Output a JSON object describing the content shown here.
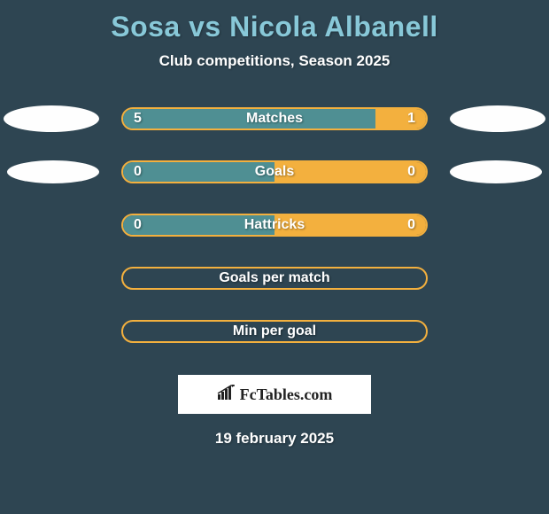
{
  "title": "Sosa vs Nicola Albanell",
  "subtitle": "Club competitions, Season 2025",
  "date": "19 february 2025",
  "logo_text": "FcTables.com",
  "colors": {
    "title": "#88c8d8",
    "text": "#ffffff",
    "background": "#2e4552",
    "left_fill": "#4f8f93",
    "right_fill": "#f3b03e",
    "border": "#f3b03e",
    "ellipse": "#fefefe"
  },
  "bars": [
    {
      "label": "Matches",
      "left_value": "5",
      "right_value": "1",
      "left_pct": 83.3,
      "right_pct": 16.7,
      "show_left_ellipse": true,
      "show_right_ellipse": true,
      "big_ellipse": true
    },
    {
      "label": "Goals",
      "left_value": "0",
      "right_value": "0",
      "left_pct": 50,
      "right_pct": 50,
      "show_left_ellipse": true,
      "show_right_ellipse": true,
      "big_ellipse": false
    },
    {
      "label": "Hattricks",
      "left_value": "0",
      "right_value": "0",
      "left_pct": 50,
      "right_pct": 50,
      "show_left_ellipse": false,
      "show_right_ellipse": false,
      "big_ellipse": false
    },
    {
      "label": "Goals per match",
      "left_value": "",
      "right_value": "",
      "left_pct": 0,
      "right_pct": 0,
      "show_left_ellipse": false,
      "show_right_ellipse": false,
      "big_ellipse": false
    },
    {
      "label": "Min per goal",
      "left_value": "",
      "right_value": "",
      "left_pct": 0,
      "right_pct": 0,
      "show_left_ellipse": false,
      "show_right_ellipse": false,
      "big_ellipse": false
    }
  ]
}
